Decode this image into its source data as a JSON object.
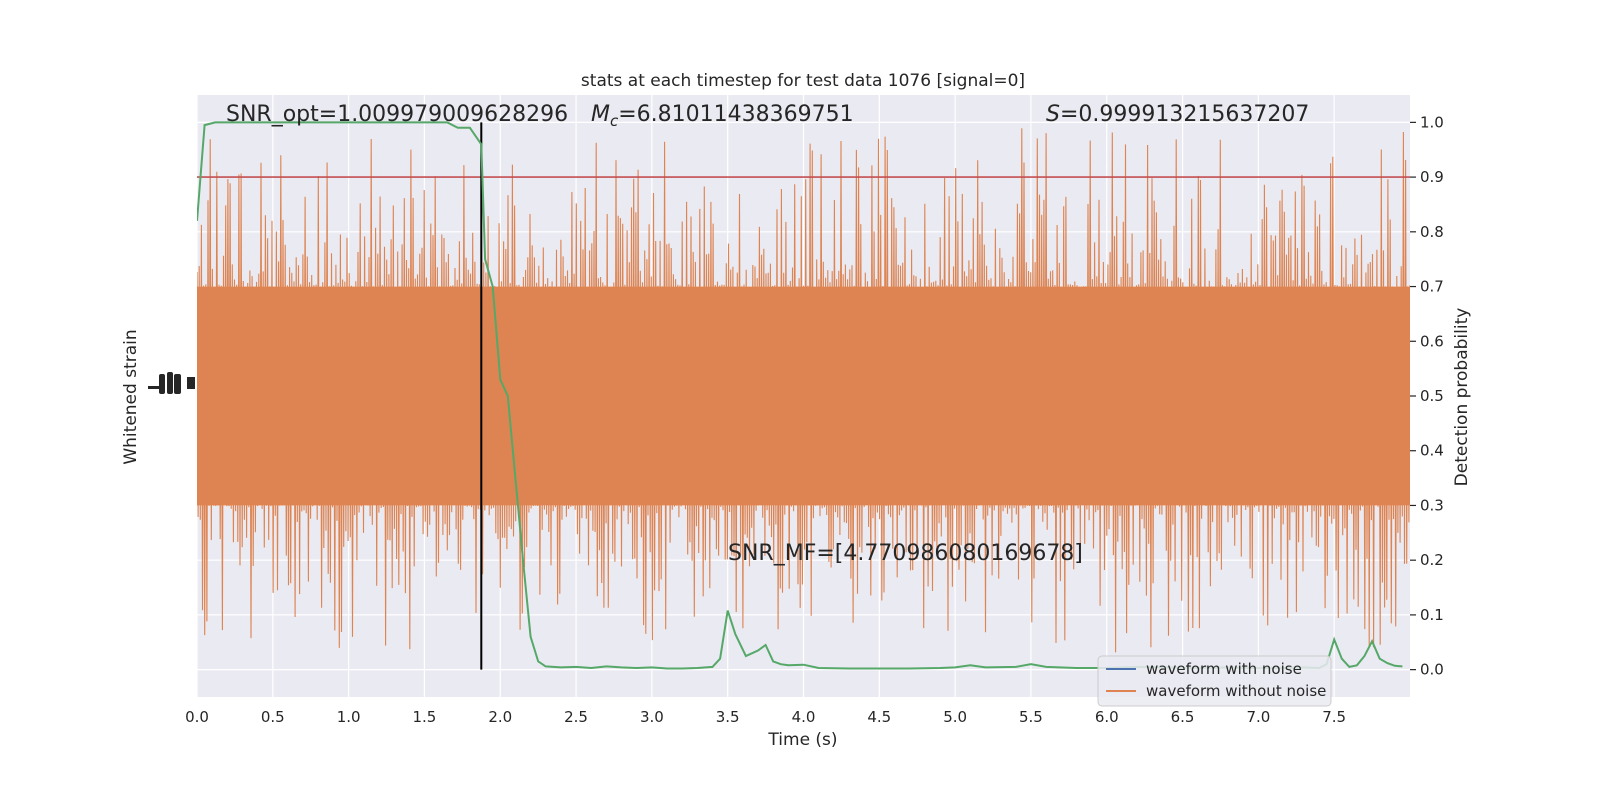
{
  "chart_data": {
    "type": "line",
    "title": "stats at each timestep for test data 1076 [signal=0]",
    "xlabel": "Time (s)",
    "ylabel_left": "Whitened strain",
    "ylabel_right": "Detection probability",
    "xlim": [
      0.0,
      8.0
    ],
    "ylim_right": [
      -0.05,
      1.05
    ],
    "x_ticks": [
      "0.0",
      "0.5",
      "1.0",
      "1.5",
      "2.0",
      "2.5",
      "3.0",
      "3.5",
      "4.0",
      "4.5",
      "5.0",
      "5.5",
      "6.0",
      "6.5",
      "7.0",
      "7.5"
    ],
    "y_ticks_right": [
      "0.0",
      "0.1",
      "0.2",
      "0.3",
      "0.4",
      "0.5",
      "0.6",
      "0.7",
      "0.8",
      "0.9",
      "1.0"
    ],
    "grid": true,
    "legend_position": "bottom-right",
    "annotations": {
      "snr_opt": "SNR_opt=1.009979009628296",
      "mc_prefix": "M",
      "mc_sub": "c",
      "mc_value": "=6.81011438369751",
      "s_prefix": "S",
      "s_value": "=0.999913215637207",
      "snr_mf": "SNR_MF=[4.770986080169678]"
    },
    "threshold": {
      "value": 0.9,
      "color": "#c44e52"
    },
    "vertical_marker": {
      "x": 1.875,
      "color": "#000000"
    },
    "series": [
      {
        "name": "waveform with noise",
        "color": "#4c72b0",
        "values": []
      },
      {
        "name": "waveform without noise",
        "color": "#dd8452",
        "band": {
          "center": 0.5,
          "core_low": 0.3,
          "core_high": 0.7,
          "max_high": 0.99,
          "min_low": 0.03
        }
      },
      {
        "name": "",
        "color": "#55a868",
        "x": [
          0.0,
          0.05,
          0.12,
          0.25,
          0.5,
          0.75,
          1.0,
          1.25,
          1.5,
          1.65,
          1.72,
          1.8,
          1.875,
          1.9,
          1.95,
          2.0,
          2.05,
          2.1,
          2.15,
          2.2,
          2.25,
          2.3,
          2.4,
          2.5,
          2.6,
          2.7,
          2.8,
          2.9,
          3.0,
          3.1,
          3.2,
          3.3,
          3.4,
          3.45,
          3.5,
          3.55,
          3.62,
          3.7,
          3.75,
          3.8,
          3.85,
          3.9,
          4.0,
          4.1,
          4.3,
          4.5,
          4.7,
          4.9,
          5.0,
          5.1,
          5.2,
          5.4,
          5.5,
          5.6,
          5.8,
          6.0,
          6.2,
          6.4,
          6.6,
          6.8,
          7.0,
          7.2,
          7.3,
          7.4,
          7.45,
          7.5,
          7.55,
          7.6,
          7.65,
          7.7,
          7.75,
          7.8,
          7.85,
          7.9,
          7.95
        ],
        "values": [
          0.82,
          0.995,
          1.0,
          1.0,
          1.0,
          1.0,
          1.0,
          1.0,
          1.0,
          1.0,
          0.99,
          0.99,
          0.96,
          0.75,
          0.7,
          0.53,
          0.5,
          0.35,
          0.2,
          0.06,
          0.015,
          0.006,
          0.004,
          0.005,
          0.003,
          0.006,
          0.004,
          0.003,
          0.004,
          0.002,
          0.002,
          0.003,
          0.005,
          0.02,
          0.108,
          0.065,
          0.025,
          0.035,
          0.045,
          0.015,
          0.01,
          0.008,
          0.009,
          0.003,
          0.002,
          0.002,
          0.002,
          0.003,
          0.004,
          0.008,
          0.004,
          0.005,
          0.01,
          0.005,
          0.003,
          0.003,
          0.005,
          0.004,
          0.003,
          0.004,
          0.003,
          0.003,
          0.004,
          0.003,
          0.01,
          0.055,
          0.02,
          0.005,
          0.008,
          0.025,
          0.052,
          0.02,
          0.012,
          0.007,
          0.006
        ]
      }
    ]
  }
}
